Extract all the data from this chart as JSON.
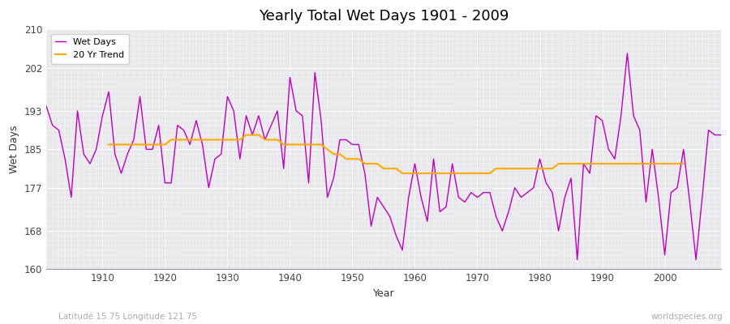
{
  "title": "Yearly Total Wet Days 1901 - 2009",
  "xlabel": "Year",
  "ylabel": "Wet Days",
  "xlim": [
    1901,
    2009
  ],
  "ylim": [
    160,
    210
  ],
  "yticks": [
    160,
    168,
    177,
    185,
    193,
    202,
    210
  ],
  "xticks": [
    1910,
    1920,
    1930,
    1940,
    1950,
    1960,
    1970,
    1980,
    1990,
    2000
  ],
  "plot_bg_color": "#e8e8ec",
  "fig_bg_color": "#ffffff",
  "line_color": "#bb00bb",
  "trend_color": "#ffaa00",
  "legend_labels": [
    "Wet Days",
    "20 Yr Trend"
  ],
  "subtitle_left": "Latitude 15.75 Longitude 121.75",
  "subtitle_right": "worldspecies.org",
  "wet_days": [
    194,
    190,
    189,
    183,
    175,
    193,
    184,
    182,
    185,
    192,
    197,
    184,
    180,
    184,
    187,
    196,
    185,
    185,
    190,
    178,
    178,
    190,
    189,
    186,
    191,
    186,
    177,
    183,
    184,
    196,
    193,
    183,
    192,
    188,
    192,
    187,
    190,
    193,
    181,
    200,
    193,
    192,
    178,
    201,
    191,
    175,
    179,
    187,
    187,
    186,
    186,
    180,
    169,
    175,
    173,
    171,
    167,
    164,
    175,
    182,
    175,
    170,
    183,
    172,
    173,
    182,
    175,
    174,
    176,
    175,
    176,
    176,
    171,
    168,
    172,
    177,
    175,
    176,
    177,
    183,
    178,
    176,
    168,
    175,
    179,
    162,
    182,
    180,
    192,
    191,
    185,
    183,
    192,
    205,
    192,
    189,
    174,
    185,
    175,
    163,
    176,
    177,
    185,
    174,
    162,
    175,
    189,
    188,
    188
  ],
  "trend_start_year": 1911,
  "trend_days": [
    186,
    186,
    186,
    186,
    186,
    186,
    186,
    186,
    186,
    186,
    187,
    187,
    187,
    187,
    187,
    187,
    187,
    187,
    187,
    187,
    187,
    187,
    188,
    188,
    188,
    187,
    187,
    187,
    186,
    186,
    186,
    186,
    186,
    186,
    186,
    185,
    184,
    184,
    183,
    183,
    183,
    182,
    182,
    182,
    181,
    181,
    181,
    180,
    180,
    180,
    180,
    180,
    180,
    180,
    180,
    180,
    180,
    180,
    180,
    180,
    180,
    180,
    181,
    181,
    181,
    181,
    181,
    181,
    181,
    181,
    181,
    181,
    182,
    182,
    182,
    182,
    182,
    182,
    182,
    182,
    182,
    182,
    182,
    182,
    182,
    182,
    182,
    182,
    182,
    182,
    182,
    182,
    182
  ]
}
